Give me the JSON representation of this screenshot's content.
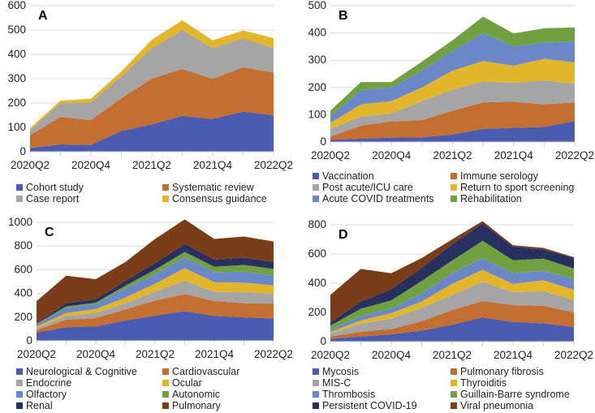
{
  "colors": [
    "#4a5bb0",
    "#c46e31",
    "#a5a5a5",
    "#e3b52a",
    "#6a87c8",
    "#70a040",
    "#27305f",
    "#7a3c19"
  ],
  "chart_data": [
    {
      "type": "area",
      "stacked": true,
      "panel_label": "A",
      "ylim": [
        0,
        600
      ],
      "yticks": [
        0,
        100,
        200,
        300,
        400,
        500,
        600
      ],
      "x": [
        "2020Q2",
        "2020Q3",
        "2020Q4",
        "2021Q1",
        "2021Q2",
        "2021Q3",
        "2021Q4",
        "2022Q1",
        "2022Q2"
      ],
      "xtick_labels": [
        "2020Q2",
        "2020Q4",
        "2021Q2",
        "2021Q4",
        "2022Q2"
      ],
      "legend": "bottom",
      "grid": true,
      "series": [
        {
          "name": "Cohort study",
          "values": [
            15,
            30,
            28,
            85,
            112,
            147,
            135,
            165,
            150
          ]
        },
        {
          "name": "Systematic review",
          "values": [
            53,
            113,
            102,
            135,
            188,
            193,
            165,
            182,
            175
          ]
        },
        {
          "name": "Case report",
          "values": [
            20,
            57,
            73,
            90,
            125,
            160,
            125,
            118,
            102
          ]
        },
        {
          "name": "Consensus guidance",
          "values": [
            9,
            10,
            15,
            20,
            35,
            40,
            33,
            33,
            40
          ]
        }
      ]
    },
    {
      "type": "area",
      "stacked": true,
      "panel_label": "B",
      "ylim": [
        0,
        500
      ],
      "yticks": [
        0,
        100,
        200,
        300,
        400,
        500
      ],
      "x": [
        "2020Q2",
        "2020Q3",
        "2020Q4",
        "2021Q1",
        "2021Q2",
        "2021Q3",
        "2021Q4",
        "2022Q1",
        "2022Q2"
      ],
      "xtick_labels": [
        "2020Q2",
        "2020Q4",
        "2021Q2",
        "2021Q4",
        "2022Q2"
      ],
      "legend": "bottom",
      "grid": true,
      "series": [
        {
          "name": "Vaccination",
          "values": [
            8,
            12,
            16,
            17,
            28,
            48,
            52,
            55,
            77
          ]
        },
        {
          "name": "Immune serology",
          "values": [
            12,
            48,
            60,
            63,
            87,
            97,
            96,
            83,
            68
          ]
        },
        {
          "name": "Post acute/ICU care",
          "values": [
            28,
            33,
            29,
            70,
            77,
            77,
            69,
            88,
            68
          ]
        },
        {
          "name": "Return to sport screening",
          "values": [
            22,
            45,
            45,
            50,
            70,
            75,
            63,
            79,
            79
          ]
        },
        {
          "name": "Acute COVID treatments",
          "values": [
            25,
            52,
            50,
            62,
            73,
            103,
            72,
            60,
            76
          ]
        },
        {
          "name": "Rehabilitation",
          "values": [
            20,
            30,
            20,
            33,
            38,
            60,
            46,
            52,
            52
          ]
        }
      ]
    },
    {
      "type": "area",
      "stacked": true,
      "panel_label": "C",
      "ylim": [
        0,
        1000
      ],
      "yticks": [
        0,
        200,
        400,
        600,
        800,
        1000
      ],
      "x": [
        "2020Q2",
        "2020Q3",
        "2020Q4",
        "2021Q1",
        "2021Q2",
        "2021Q3",
        "2021Q4",
        "2022Q1",
        "2022Q2"
      ],
      "xtick_labels": [
        "2020Q2",
        "2020Q4",
        "2021Q2",
        "2021Q4",
        "2022Q2"
      ],
      "legend": "bottom",
      "grid": true,
      "series": [
        {
          "name": "Neurological & Cognitive",
          "values": [
            70,
            115,
            122,
            170,
            212,
            250,
            210,
            198,
            188
          ]
        },
        {
          "name": "Cardiovascular",
          "values": [
            20,
            63,
            70,
            95,
            128,
            145,
            125,
            120,
            125
          ]
        },
        {
          "name": "Endocrine",
          "values": [
            15,
            32,
            43,
            50,
            75,
            113,
            78,
            92,
            84
          ]
        },
        {
          "name": "Ocular",
          "values": [
            15,
            25,
            33,
            50,
            67,
            105,
            82,
            80,
            71
          ]
        },
        {
          "name": "Olfactory",
          "values": [
            18,
            43,
            42,
            75,
            78,
            90,
            85,
            95,
            82
          ]
        },
        {
          "name": "Autonomic",
          "values": [
            5,
            12,
            12,
            25,
            40,
            47,
            45,
            55,
            57
          ]
        },
        {
          "name": "Renal",
          "values": [
            7,
            25,
            30,
            40,
            55,
            68,
            60,
            60,
            58
          ]
        },
        {
          "name": "Pulmonary",
          "values": [
            185,
            235,
            168,
            160,
            205,
            207,
            175,
            180,
            173
          ]
        }
      ]
    },
    {
      "type": "area",
      "stacked": true,
      "panel_label": "D",
      "ylim": [
        0,
        800
      ],
      "yticks": [
        0,
        200,
        400,
        600,
        800
      ],
      "x": [
        "2020Q2",
        "2020Q3",
        "2020Q4",
        "2021Q1",
        "2021Q2",
        "2021Q3",
        "2021Q4",
        "2022Q1",
        "2022Q2"
      ],
      "xtick_labels": [
        "2020Q2",
        "2020Q4",
        "2021Q2",
        "2021Q4",
        "2022Q2"
      ],
      "legend": "bottom",
      "grid": true,
      "series": [
        {
          "name": "Mycosis",
          "values": [
            20,
            35,
            50,
            75,
            115,
            165,
            135,
            125,
            100
          ]
        },
        {
          "name": "Pulmonary fibrosis",
          "values": [
            15,
            33,
            35,
            65,
            100,
            113,
            115,
            120,
            100
          ]
        },
        {
          "name": "MIS-C",
          "values": [
            20,
            54,
            73,
            90,
            105,
            132,
            88,
            100,
            85
          ]
        },
        {
          "name": "Thyroiditis",
          "values": [
            10,
            23,
            37,
            45,
            75,
            82,
            57,
            75,
            70
          ]
        },
        {
          "name": "Thrombosis",
          "values": [
            15,
            30,
            33,
            55,
            75,
            80,
            73,
            65,
            75
          ]
        },
        {
          "name": "Guillain-Barre syndrome",
          "values": [
            30,
            50,
            54,
            85,
            85,
            118,
            89,
            83,
            70
          ]
        },
        {
          "name": "Persistent COVID-19",
          "values": [
            20,
            50,
            76,
            90,
            110,
            120,
            93,
            62,
            75
          ]
        },
        {
          "name": "Viral pneumonia",
          "values": [
            190,
            223,
            110,
            67,
            35,
            15,
            10,
            12,
            3
          ]
        }
      ]
    }
  ]
}
